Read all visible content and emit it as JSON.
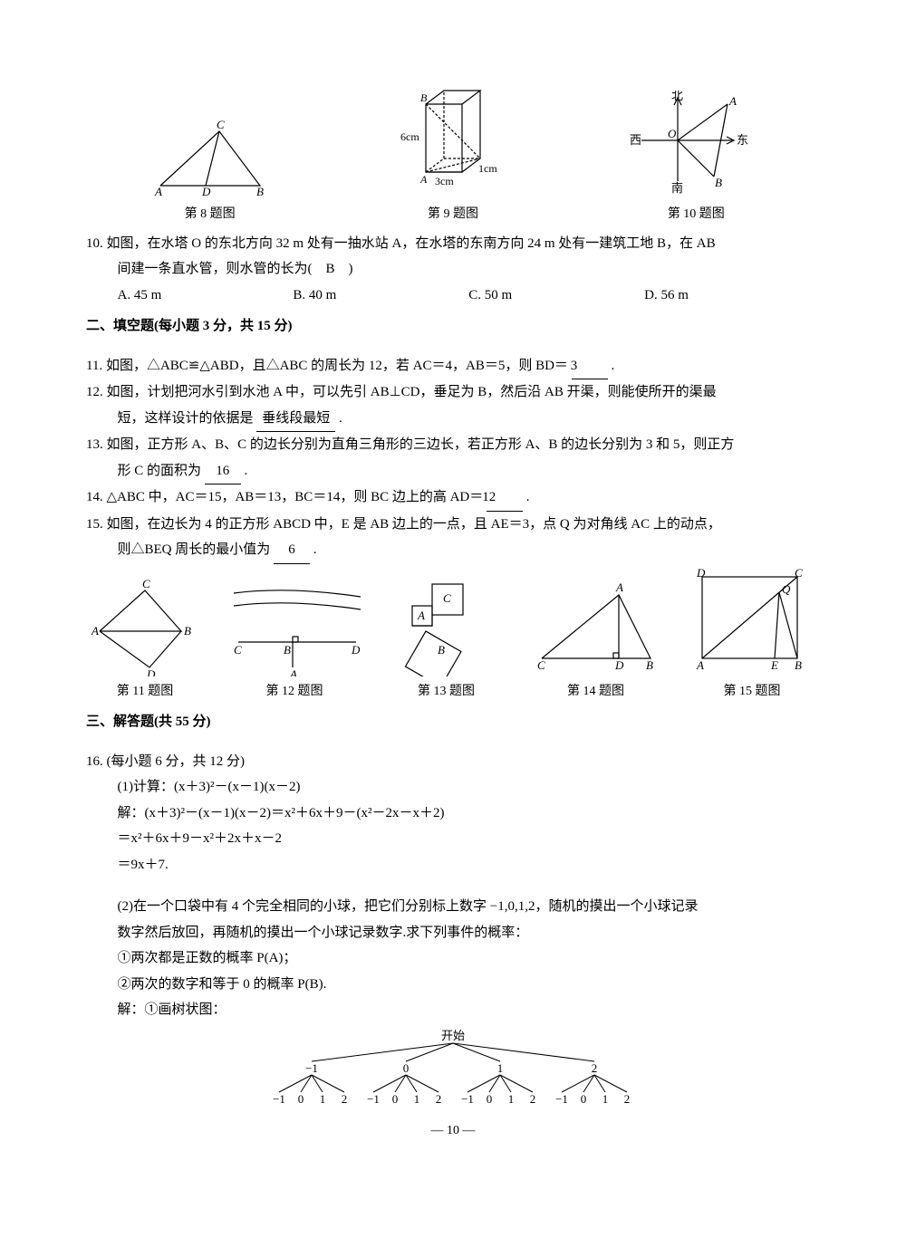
{
  "figRowTop": {
    "fig8": {
      "caption": "第 8 题图",
      "labels": {
        "A": "A",
        "B": "B",
        "C": "C",
        "D": "D"
      }
    },
    "fig9": {
      "caption": "第 9 题图",
      "labels": {
        "A": "A",
        "B": "B",
        "h": "6cm",
        "w": "3cm",
        "d": "1cm"
      }
    },
    "fig10": {
      "caption": "第 10 题图",
      "labels": {
        "N": "北",
        "S": "南",
        "E": "东",
        "W": "西",
        "O": "O",
        "A": "A",
        "B": "B"
      }
    }
  },
  "q10": {
    "num": "10.",
    "text1": "如图，在水塔 O 的东北方向 32 m 处有一抽水站 A，在水塔的东南方向 24 m 处有一建筑工地 B，在 AB",
    "text2": "间建一条直水管，则水管的长为(　B　)",
    "opts": {
      "A": "A. 45 m",
      "B": "B. 40 m",
      "C": "C. 50 m",
      "D": "D. 56 m"
    }
  },
  "sec2": "二、填空题(每小题 3 分，共 15 分)",
  "q11": {
    "num": "11.",
    "t": "如图，△ABC≌△ABD，且△ABC 的周长为 12，若 AC＝4，AB＝5，则 BD＝",
    "ans": "3",
    "tail": "."
  },
  "q12": {
    "num": "12.",
    "t1": "如图，计划把河水引到水池 A 中，可以先引 AB⊥CD，垂足为 B，然后沿 AB 开渠，则能使所开的渠最",
    "t2": "短，这样设计的依据是",
    "ans": "垂线段最短",
    "tail": "."
  },
  "q13": {
    "num": "13.",
    "t1": "如图，正方形 A、B、C 的边长分别为直角三角形的三边长，若正方形 A、B 的边长分别为 3 和 5，则正方",
    "t2": "形 C 的面积为",
    "ans": "16",
    "tail": "."
  },
  "q14": {
    "num": "14.",
    "t": "△ABC 中，AC＝15，AB＝13，BC＝14，则 BC 边上的高 AD＝",
    "ans": "12",
    "tail": "."
  },
  "q15": {
    "num": "15.",
    "t1": "如图，在边长为 4 的正方形 ABCD 中，E 是 AB 边上的一点，且 AE＝3，点 Q 为对角线 AC 上的动点，",
    "t2": "则△BEQ 周长的最小值为",
    "ans": "6",
    "tail": "."
  },
  "figRowMid": {
    "f11": "第 11 题图",
    "f12": "第 12 题图",
    "f13": "第 13 题图",
    "f14": "第 14 题图",
    "f15": "第 15 题图",
    "labels11": {
      "A": "A",
      "B": "B",
      "C": "C",
      "D": "D"
    },
    "labels12": {
      "A": "A",
      "B": "B",
      "C": "C",
      "D": "D"
    },
    "labels13": {
      "A": "A",
      "B": "B",
      "C": "C"
    },
    "labels14": {
      "A": "A",
      "B": "B",
      "C": "C",
      "D": "D"
    },
    "labels15": {
      "A": "A",
      "B": "B",
      "C": "C",
      "D": "D",
      "E": "E",
      "Q": "Q"
    }
  },
  "sec3": "三、解答题(共 55 分)",
  "q16": {
    "num": "16.",
    "head": "(每小题 6 分，共 12 分)",
    "p1_label": "(1)计算：(x＋3)²－(x－1)(x－2)",
    "p1_s1": "解：(x＋3)²－(x－1)(x－2)＝x²＋6x＋9－(x²－2x－x＋2)",
    "p1_s2": "＝x²＋6x＋9－x²＋2x＋x－2",
    "p1_s3": "＝9x＋7.",
    "p2_t1": "(2)在一个口袋中有 4 个完全相同的小球，把它们分别标上数字 −1,0,1,2，随机的摸出一个小球记录",
    "p2_t2": "数字然后放回，再随机的摸出一个小球记录数字.求下列事件的概率：",
    "p2_a": "①两次都是正数的概率 P(A)；",
    "p2_b": "②两次的数字和等于 0 的概率 P(B).",
    "p2_sol": "解：①画树状图：",
    "tree": {
      "root": "开始",
      "level1": [
        "−1",
        "0",
        "1",
        "2"
      ],
      "level2": [
        "−1",
        "0",
        "1",
        "2"
      ]
    }
  },
  "pageNumber": "— 10 —",
  "style": {
    "stroke": "#000000",
    "strokeWidth": 1.2,
    "dash": "3,2",
    "fontSize": 13,
    "fontFamily": "Times New Roman, SimSun"
  }
}
